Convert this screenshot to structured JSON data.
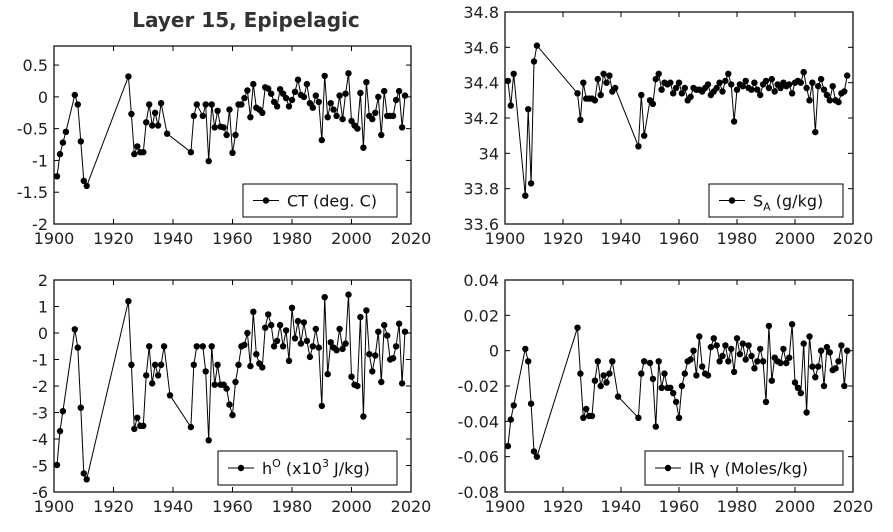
{
  "chart_data": [
    {
      "type": "line",
      "title": "Layer 15, Epipelagic",
      "xlim": [
        1900,
        2020
      ],
      "ylim": [
        -2,
        0.8
      ],
      "xticks": [
        "1900",
        "1920",
        "1940",
        "1960",
        "1980",
        "2000",
        "2020"
      ],
      "yticks": [
        "-2",
        "-1.5",
        "-1",
        "-0.5",
        "0",
        "0.5"
      ],
      "ytick_values": [
        -2,
        -1.5,
        -1,
        -0.5,
        0,
        0.5
      ],
      "legend": "CT (deg. C)",
      "legend_position": "bottom-right",
      "series": [
        {
          "name": "CT (deg. C)",
          "x": [
            1901,
            1902,
            1903,
            1904,
            1907,
            1908,
            1909,
            1910,
            1911,
            1925,
            1926,
            1927,
            1928,
            1929,
            1930,
            1931,
            1932,
            1933,
            1934,
            1935,
            1936,
            1938,
            1946,
            1947,
            1948,
            1950,
            1951,
            1952,
            1953,
            1954,
            1955,
            1956,
            1957,
            1958,
            1959,
            1960,
            1961,
            1962,
            1963,
            1964,
            1965,
            1966,
            1967,
            1968,
            1969,
            1970,
            1971,
            1972,
            1973,
            1974,
            1975,
            1976,
            1977,
            1978,
            1979,
            1980,
            1981,
            1982,
            1983,
            1984,
            1985,
            1986,
            1987,
            1988,
            1989,
            1990,
            1991,
            1992,
            1993,
            1994,
            1995,
            1996,
            1997,
            1998,
            1999,
            2000,
            2001,
            2002,
            2003,
            2004,
            2005,
            2006,
            2007,
            2008,
            2009,
            2010,
            2011,
            2012,
            2013,
            2014,
            2015,
            2016,
            2017,
            2018
          ],
          "values": [
            -1.25,
            -0.9,
            -0.72,
            -0.55,
            0.03,
            -0.12,
            -0.7,
            -1.32,
            -1.4,
            0.32,
            -0.27,
            -0.9,
            -0.78,
            -0.87,
            -0.87,
            -0.4,
            -0.12,
            -0.45,
            -0.25,
            -0.45,
            -0.1,
            -0.58,
            -0.87,
            -0.3,
            -0.12,
            -0.3,
            -0.12,
            -1.01,
            -0.12,
            -0.48,
            -0.22,
            -0.47,
            -0.48,
            -0.6,
            -0.2,
            -0.88,
            -0.6,
            -0.12,
            -0.12,
            -0.02,
            0.1,
            -0.32,
            0.2,
            -0.17,
            -0.2,
            -0.25,
            0.15,
            0.13,
            0.05,
            -0.08,
            -0.15,
            0.12,
            0.05,
            -0.02,
            -0.15,
            -0.05,
            0.08,
            0.27,
            0.03,
            0.0,
            0.2,
            -0.1,
            -0.17,
            0.02,
            -0.08,
            -0.68,
            0.33,
            -0.32,
            -0.1,
            -0.2,
            -0.3,
            0.02,
            -0.35,
            0.05,
            0.37,
            -0.38,
            -0.45,
            -0.5,
            0.06,
            -0.8,
            0.23,
            -0.3,
            -0.35,
            -0.25,
            0.0,
            -0.6,
            0.09,
            -0.3,
            -0.3,
            -0.3,
            -0.05,
            0.09,
            -0.48,
            0.02
          ]
        }
      ]
    },
    {
      "type": "line",
      "xlim": [
        1900,
        2020
      ],
      "ylim": [
        33.6,
        34.8
      ],
      "xticks": [
        "1900",
        "1920",
        "1940",
        "1960",
        "1980",
        "2000",
        "2020"
      ],
      "yticks": [
        "33.6",
        "33.8",
        "34",
        "34.2",
        "34.4",
        "34.6",
        "34.8"
      ],
      "ytick_values": [
        33.6,
        33.8,
        34.0,
        34.2,
        34.4,
        34.6,
        34.8
      ],
      "legend": "S_A (g/kg)",
      "legend_main": "S",
      "legend_sub": "A",
      "legend_rest": " (g/kg)",
      "legend_position": "bottom-right",
      "series": [
        {
          "name": "S_A (g/kg)",
          "x": [
            1901,
            1902,
            1903,
            1907,
            1908,
            1909,
            1910,
            1911,
            1925,
            1926,
            1927,
            1928,
            1929,
            1930,
            1931,
            1932,
            1933,
            1934,
            1935,
            1936,
            1937,
            1938,
            1946,
            1947,
            1948,
            1950,
            1951,
            1952,
            1953,
            1954,
            1955,
            1956,
            1957,
            1958,
            1959,
            1960,
            1961,
            1962,
            1963,
            1964,
            1965,
            1966,
            1967,
            1968,
            1969,
            1970,
            1971,
            1972,
            1973,
            1974,
            1975,
            1976,
            1977,
            1978,
            1979,
            1980,
            1981,
            1982,
            1983,
            1984,
            1985,
            1986,
            1987,
            1988,
            1989,
            1990,
            1991,
            1992,
            1993,
            1994,
            1995,
            1996,
            1997,
            1998,
            1999,
            2000,
            2001,
            2002,
            2003,
            2004,
            2005,
            2006,
            2007,
            2008,
            2009,
            2010,
            2011,
            2012,
            2013,
            2014,
            2015,
            2016,
            2017,
            2018
          ],
          "values": [
            34.41,
            34.27,
            34.45,
            33.76,
            34.25,
            33.83,
            34.52,
            34.61,
            34.34,
            34.19,
            34.4,
            34.31,
            34.31,
            34.31,
            34.3,
            34.42,
            34.33,
            34.45,
            34.4,
            34.44,
            34.35,
            34.37,
            34.04,
            34.33,
            34.1,
            34.3,
            34.28,
            34.42,
            34.45,
            34.36,
            34.4,
            34.39,
            34.4,
            34.34,
            34.37,
            34.4,
            34.34,
            34.37,
            34.3,
            34.32,
            34.37,
            34.36,
            34.36,
            34.35,
            34.37,
            34.39,
            34.33,
            34.35,
            34.37,
            34.4,
            34.35,
            34.41,
            34.45,
            34.39,
            34.18,
            34.36,
            34.39,
            34.38,
            34.41,
            34.37,
            34.36,
            34.4,
            34.36,
            34.33,
            34.39,
            34.41,
            34.37,
            34.42,
            34.35,
            34.39,
            34.37,
            34.4,
            34.38,
            34.39,
            34.34,
            34.4,
            34.41,
            34.4,
            34.46,
            34.37,
            34.3,
            34.4,
            34.12,
            34.38,
            34.42,
            34.36,
            34.33,
            34.3,
            34.38,
            34.3,
            34.29,
            34.34,
            34.35,
            34.44
          ]
        }
      ]
    },
    {
      "type": "line",
      "xlim": [
        1900,
        2020
      ],
      "ylim": [
        -6,
        2
      ],
      "xticks": [
        "1900",
        "1920",
        "1940",
        "1960",
        "1980",
        "2000",
        "2020"
      ],
      "yticks": [
        "-6",
        "-5",
        "-4",
        "-3",
        "-2",
        "-1",
        "0",
        "1",
        "2"
      ],
      "ytick_values": [
        -6,
        -5,
        -4,
        -3,
        -2,
        -1,
        0,
        1,
        2
      ],
      "legend": "hO (x10³ J/kg)",
      "legend_main": "h",
      "legend_sup": "O",
      "legend_mid": " (x10",
      "legend_sup2": "3",
      "legend_rest": " J/kg)",
      "legend_position": "bottom-right",
      "series": [
        {
          "name": "hO (x10³ J/kg)",
          "x": [
            1901,
            1902,
            1903,
            1907,
            1908,
            1909,
            1910,
            1911,
            1925,
            1926,
            1927,
            1928,
            1929,
            1930,
            1931,
            1932,
            1933,
            1934,
            1935,
            1936,
            1937,
            1939,
            1946,
            1947,
            1948,
            1950,
            1951,
            1952,
            1953,
            1954,
            1955,
            1956,
            1957,
            1958,
            1959,
            1960,
            1961,
            1962,
            1963,
            1964,
            1965,
            1966,
            1967,
            1968,
            1969,
            1970,
            1971,
            1972,
            1973,
            1974,
            1975,
            1976,
            1977,
            1978,
            1979,
            1980,
            1981,
            1982,
            1983,
            1984,
            1985,
            1986,
            1987,
            1988,
            1989,
            1990,
            1991,
            1992,
            1993,
            1994,
            1995,
            1996,
            1997,
            1998,
            1999,
            2000,
            2001,
            2002,
            2003,
            2004,
            2005,
            2006,
            2007,
            2008,
            2009,
            2010,
            2011,
            2012,
            2013,
            2014,
            2015,
            2016,
            2017,
            2018
          ],
          "values": [
            -4.98,
            -3.7,
            -2.95,
            0.14,
            -0.55,
            -2.82,
            -5.3,
            -5.52,
            1.2,
            -1.2,
            -3.62,
            -3.2,
            -3.5,
            -3.5,
            -1.6,
            -0.5,
            -1.9,
            -1.2,
            -1.6,
            -1.2,
            -0.5,
            -2.35,
            -3.55,
            -1.2,
            -0.5,
            -0.5,
            -1.45,
            -4.05,
            -0.5,
            -1.95,
            -1.2,
            -1.95,
            -1.95,
            -2.1,
            -2.7,
            -3.1,
            -1.85,
            -1.2,
            -0.5,
            -0.45,
            0.0,
            -1.25,
            0.8,
            -0.8,
            -1.15,
            -1.3,
            0.2,
            0.7,
            0.3,
            -0.5,
            -0.3,
            0.3,
            -0.5,
            0.1,
            -1.05,
            0.95,
            -0.2,
            0.45,
            -0.4,
            0.4,
            -0.3,
            -0.9,
            -0.5,
            0.15,
            -0.55,
            -2.75,
            1.35,
            -1.55,
            -0.35,
            -0.55,
            -0.65,
            0.15,
            -0.6,
            -0.4,
            1.45,
            -1.65,
            -1.95,
            -2.0,
            0.6,
            -3.15,
            0.85,
            -0.8,
            -1.45,
            -0.85,
            0.05,
            -1.85,
            0.3,
            -0.1,
            -1.0,
            -0.95,
            -0.5,
            0.35,
            -1.9,
            0.05
          ]
        }
      ]
    },
    {
      "type": "line",
      "xlim": [
        1900,
        2020
      ],
      "ylim": [
        -0.08,
        0.04
      ],
      "xticks": [
        "1900",
        "1920",
        "1940",
        "1960",
        "1980",
        "2000",
        "2020"
      ],
      "yticks": [
        "-0.08",
        "-0.06",
        "-0.04",
        "-0.02",
        "0",
        "0.02",
        "0.04"
      ],
      "ytick_values": [
        -0.08,
        -0.06,
        -0.04,
        -0.02,
        0,
        0.02,
        0.04
      ],
      "legend": "IR γ (Moles/kg)",
      "legend_main": "IR ",
      "legend_greek": "γ",
      "legend_rest": " (Moles/kg)",
      "legend_position": "bottom-right",
      "series": [
        {
          "name": "IR γ (Moles/kg)",
          "x": [
            1901,
            1902,
            1903,
            1907,
            1908,
            1909,
            1910,
            1911,
            1925,
            1926,
            1927,
            1928,
            1929,
            1930,
            1931,
            1932,
            1933,
            1934,
            1935,
            1936,
            1937,
            1939,
            1946,
            1947,
            1948,
            1950,
            1951,
            1952,
            1953,
            1954,
            1955,
            1956,
            1957,
            1958,
            1959,
            1960,
            1961,
            1962,
            1963,
            1964,
            1965,
            1966,
            1967,
            1968,
            1969,
            1970,
            1971,
            1972,
            1973,
            1974,
            1975,
            1976,
            1977,
            1978,
            1979,
            1980,
            1981,
            1982,
            1983,
            1984,
            1985,
            1986,
            1987,
            1988,
            1989,
            1990,
            1991,
            1992,
            1993,
            1994,
            1995,
            1996,
            1997,
            1998,
            1999,
            2000,
            2001,
            2002,
            2003,
            2004,
            2005,
            2006,
            2007,
            2008,
            2009,
            2010,
            2011,
            2012,
            2013,
            2014,
            2015,
            2016,
            2017,
            2018
          ],
          "values": [
            -0.054,
            -0.039,
            -0.031,
            0.001,
            -0.006,
            -0.03,
            -0.057,
            -0.06,
            0.013,
            -0.013,
            -0.038,
            -0.033,
            -0.037,
            -0.037,
            -0.017,
            -0.006,
            -0.02,
            -0.014,
            -0.018,
            -0.013,
            -0.006,
            -0.026,
            -0.038,
            -0.013,
            -0.006,
            -0.007,
            -0.016,
            -0.043,
            -0.006,
            -0.021,
            -0.013,
            -0.021,
            -0.021,
            -0.024,
            -0.029,
            -0.038,
            -0.02,
            -0.013,
            -0.006,
            -0.005,
            0.0,
            -0.014,
            0.008,
            -0.009,
            -0.013,
            -0.014,
            0.002,
            0.007,
            0.003,
            -0.006,
            -0.003,
            0.003,
            -0.006,
            0.001,
            -0.012,
            0.007,
            -0.002,
            0.004,
            -0.005,
            0.003,
            -0.003,
            -0.01,
            -0.006,
            0.001,
            -0.006,
            -0.029,
            0.014,
            -0.017,
            -0.004,
            -0.006,
            -0.007,
            0.001,
            -0.007,
            -0.004,
            0.015,
            -0.018,
            -0.021,
            -0.024,
            0.004,
            -0.035,
            0.008,
            -0.009,
            -0.015,
            -0.009,
            0.0,
            -0.02,
            0.002,
            -0.001,
            -0.011,
            -0.01,
            -0.006,
            0.003,
            -0.02,
            0.0
          ]
        }
      ]
    }
  ]
}
